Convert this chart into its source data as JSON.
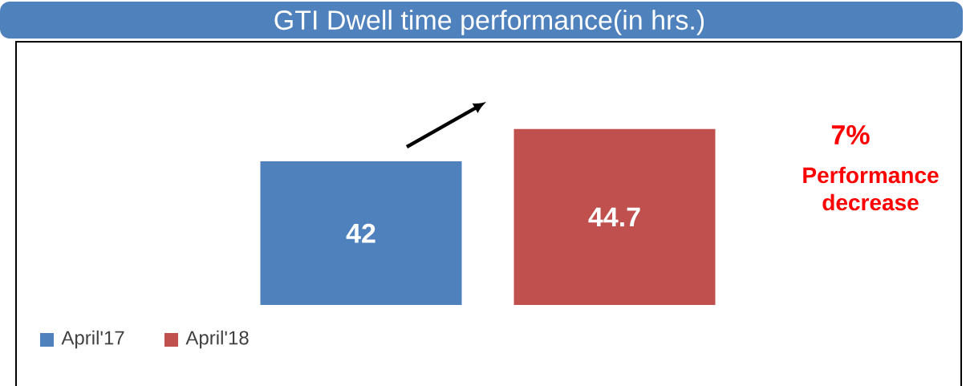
{
  "chart_data": {
    "type": "bar",
    "title": "GTI Dwell time performance(in hrs.)",
    "categories": [
      null
    ],
    "series": [
      {
        "name": "April'17",
        "color": "#4f81bd",
        "values": [
          42
        ]
      },
      {
        "name": "April'18",
        "color": "#c0504d",
        "values": [
          44.7
        ]
      }
    ],
    "ylim": [
      30,
      52
    ],
    "data_labels": true,
    "legend": "bottom left",
    "annotations": [
      "7%",
      "Performance decrease"
    ]
  }
}
